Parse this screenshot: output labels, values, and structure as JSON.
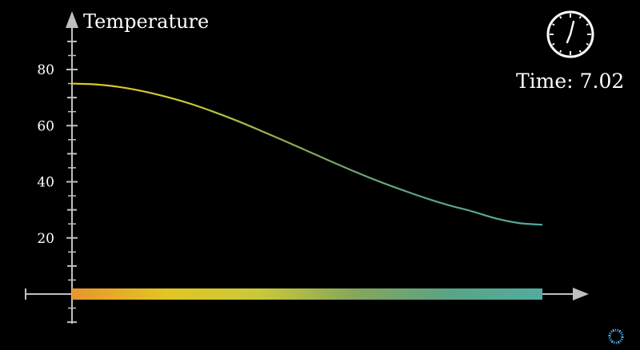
{
  "colors": {
    "background": "#000000",
    "axis": "#bfbfbf",
    "text": "#ffffff",
    "gradient": [
      "#e8952c",
      "#e2c524",
      "#c9c93a",
      "#86a65c",
      "#5aa485",
      "#52aca0"
    ],
    "corner_logo": "#2a8fd0"
  },
  "clock": {
    "icon": "clock-icon",
    "label": "Time:",
    "value": "7.02"
  },
  "corner_logo": {
    "icon": "spinner-logo-icon"
  },
  "chart_data": {
    "type": "line",
    "ylabel": "Temperature",
    "xlabel": "",
    "y_ticks": [
      20,
      40,
      60,
      80
    ],
    "ylim": [
      -10,
      92
    ],
    "xlim": [
      -0.15,
      1.17
    ],
    "series": [
      {
        "x": [
          0.0,
          0.05,
          0.1,
          0.15,
          0.2,
          0.25,
          0.3,
          0.35,
          0.4,
          0.45,
          0.5,
          0.55,
          0.6,
          0.65,
          0.7,
          0.75,
          0.8,
          0.85,
          0.9,
          0.95,
          1.0
        ],
        "y": [
          75.0,
          74.7,
          73.8,
          72.3,
          70.3,
          67.9,
          65.0,
          61.8,
          58.3,
          54.7,
          51.0,
          47.3,
          43.7,
          40.3,
          37.2,
          34.3,
          31.7,
          29.5,
          27.0,
          25.3,
          24.7
        ]
      }
    ],
    "rod": {
      "present": true,
      "y": 0
    },
    "grid": false
  }
}
